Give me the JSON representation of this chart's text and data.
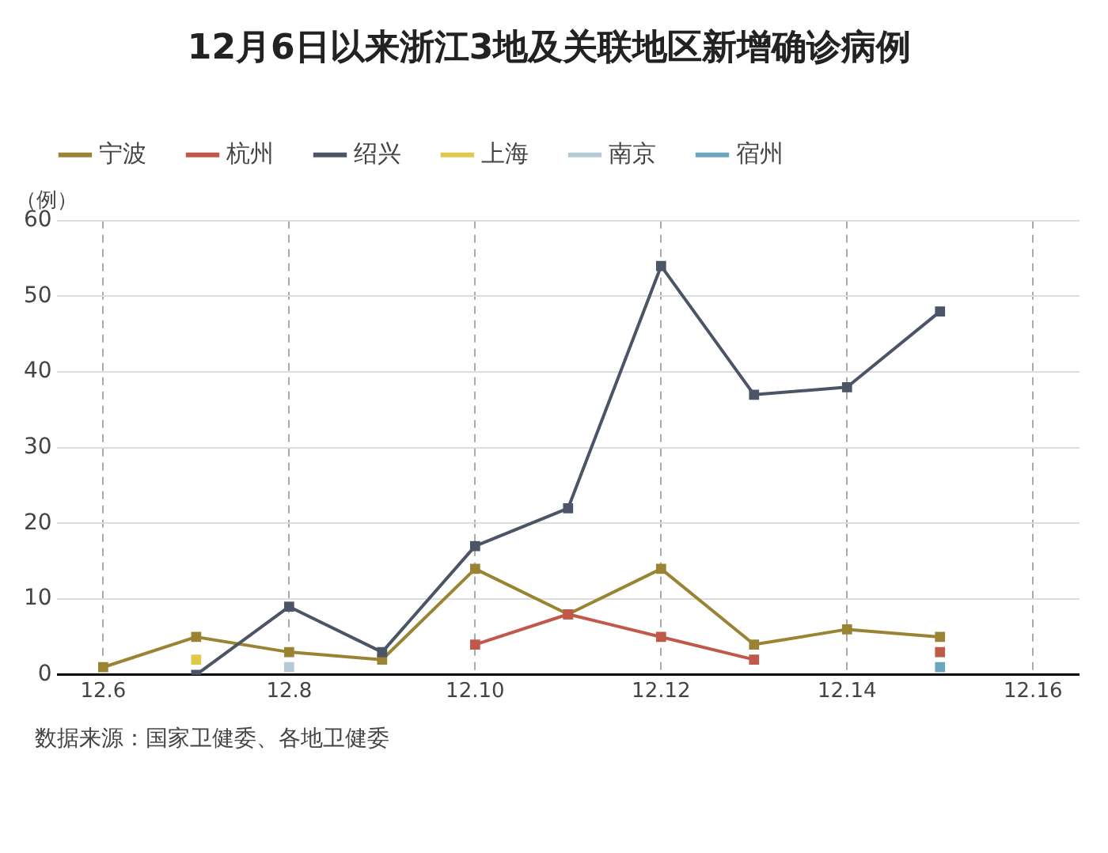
{
  "chart_data": {
    "type": "line",
    "title": "12月6日以来浙江3地及关联地区新增确诊病例",
    "ylabel": "（例）",
    "annotations": [
      "数据来源：国家卫健委、各地卫健委"
    ],
    "categories": [
      "12.6",
      null,
      "12.8",
      null,
      "12.10",
      null,
      "12.12",
      null,
      "12.14",
      null,
      "12.16"
    ],
    "ylim": [
      0,
      60
    ],
    "yticks": [
      0,
      10,
      20,
      30,
      40,
      50,
      60
    ],
    "series": [
      {
        "name": "宁波",
        "color": "#9a8434",
        "values": [
          1,
          5,
          3,
          2,
          14,
          8,
          14,
          4,
          6,
          5,
          null
        ]
      },
      {
        "name": "杭州",
        "color": "#c0594a",
        "values": [
          null,
          null,
          null,
          null,
          4,
          8,
          5,
          2,
          null,
          3,
          null
        ]
      },
      {
        "name": "绍兴",
        "color": "#4b5566",
        "values": [
          null,
          0,
          9,
          3,
          17,
          22,
          54,
          37,
          38,
          48,
          null
        ]
      },
      {
        "name": "上海",
        "color": "#e0c94a",
        "values": [
          null,
          2,
          null,
          null,
          null,
          null,
          null,
          null,
          null,
          null,
          null
        ]
      },
      {
        "name": "南京",
        "color": "#b4cad6",
        "values": [
          null,
          null,
          1,
          null,
          null,
          null,
          null,
          null,
          null,
          null,
          null
        ]
      },
      {
        "name": "宿州",
        "color": "#6aa6c0",
        "values": [
          null,
          null,
          null,
          null,
          null,
          null,
          null,
          null,
          null,
          1,
          null
        ]
      }
    ],
    "grid": true,
    "legend": "top",
    "marker": "square",
    "line_style": "solid"
  }
}
